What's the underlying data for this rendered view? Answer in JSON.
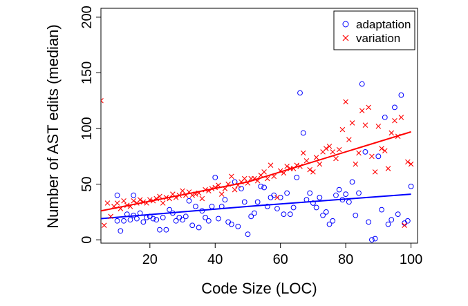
{
  "chart_data": {
    "type": "scatter",
    "xlabel": "Code Size (LOC)",
    "ylabel": "Number of AST edits (median)",
    "xlim": [
      5,
      102
    ],
    "ylim": [
      -3,
      208
    ],
    "xticks": [
      20,
      40,
      60,
      80,
      100
    ],
    "yticks": [
      0,
      50,
      100,
      150,
      200
    ],
    "xtick_labels": [
      "20",
      "40",
      "60",
      "80",
      "100"
    ],
    "ytick_labels": [
      "0",
      "50",
      "100",
      "150",
      "200"
    ],
    "grid": false,
    "legend_position": "top-right",
    "series": [
      {
        "name": "adaptation",
        "marker": "circle",
        "color": "#0000ff",
        "x": [
          10,
          10,
          11,
          12,
          13,
          14,
          15,
          15,
          16,
          17,
          18,
          19,
          20,
          21,
          22,
          23,
          24,
          25,
          26,
          27,
          28,
          29,
          30,
          31,
          32,
          33,
          34,
          35,
          36,
          37,
          38,
          39,
          40,
          41,
          42,
          43,
          44,
          45,
          46,
          47,
          48,
          49,
          50,
          51,
          52,
          53,
          54,
          55,
          56,
          57,
          58,
          59,
          60,
          61,
          62,
          63,
          64,
          65,
          66,
          67,
          68,
          69,
          70,
          71,
          72,
          73,
          74,
          75,
          76,
          77,
          78,
          79,
          80,
          81,
          82,
          83,
          84,
          85,
          86,
          87,
          88,
          89,
          90,
          91,
          92,
          93,
          94,
          95,
          96,
          97,
          98,
          99,
          100
        ],
        "y": [
          17,
          40,
          8,
          17,
          23,
          18,
          40,
          22,
          19,
          24,
          16,
          20,
          21,
          19,
          18,
          9,
          20,
          9,
          27,
          24,
          17,
          20,
          18,
          21,
          35,
          13,
          30,
          11,
          26,
          20,
          17,
          30,
          56,
          19,
          30,
          36,
          16,
          14,
          52,
          12,
          46,
          34,
          5,
          21,
          24,
          34,
          48,
          47,
          30,
          38,
          40,
          28,
          38,
          23,
          42,
          23,
          29,
          56,
          132,
          96,
          36,
          42,
          33,
          29,
          38,
          22,
          25,
          14,
          17,
          40,
          45,
          36,
          41,
          34,
          52,
          22,
          42,
          140,
          79,
          16,
          0,
          1,
          75,
          27,
          110,
          14,
          18,
          119,
          23,
          130,
          15,
          17,
          48
        ],
        "trend_x": [
          5,
          50,
          100
        ],
        "trend_y": [
          19,
          30,
          41
        ]
      },
      {
        "name": "variation",
        "marker": "cross",
        "color": "#ff0000",
        "x": [
          5,
          6,
          7,
          8,
          9,
          10,
          11,
          12,
          13,
          14,
          15,
          16,
          17,
          18,
          19,
          20,
          21,
          22,
          23,
          24,
          25,
          26,
          27,
          28,
          29,
          30,
          31,
          32,
          33,
          34,
          35,
          36,
          37,
          38,
          39,
          40,
          41,
          42,
          43,
          44,
          45,
          46,
          47,
          48,
          49,
          50,
          51,
          52,
          53,
          54,
          55,
          56,
          57,
          58,
          59,
          60,
          61,
          62,
          63,
          64,
          65,
          66,
          67,
          68,
          69,
          70,
          71,
          72,
          73,
          74,
          75,
          76,
          77,
          78,
          79,
          80,
          81,
          82,
          83,
          84,
          85,
          86,
          87,
          88,
          89,
          90,
          91,
          92,
          93,
          94,
          95,
          96,
          97,
          98,
          99,
          100
        ],
        "y": [
          125,
          13,
          33,
          21,
          30,
          33,
          28,
          35,
          31,
          30,
          35,
          33,
          36,
          34,
          33,
          36,
          35,
          37,
          39,
          33,
          38,
          37,
          41,
          38,
          40,
          44,
          40,
          43,
          40,
          41,
          42,
          37,
          45,
          44,
          46,
          47,
          49,
          41,
          46,
          50,
          57,
          45,
          49,
          52,
          55,
          51,
          55,
          55,
          53,
          58,
          61,
          55,
          67,
          57,
          38,
          62,
          60,
          66,
          64,
          64,
          67,
          66,
          78,
          71,
          63,
          61,
          74,
          68,
          79,
          82,
          84,
          79,
          73,
          81,
          99,
          124,
          90,
          105,
          68,
          78,
          116,
          103,
          119,
          75,
          61,
          102,
          82,
          80,
          64,
          96,
          107,
          93,
          110,
          13,
          70,
          68
        ],
        "trend_x": [
          5,
          50,
          100
        ],
        "trend_y": [
          26,
          52,
          97
        ]
      }
    ]
  }
}
